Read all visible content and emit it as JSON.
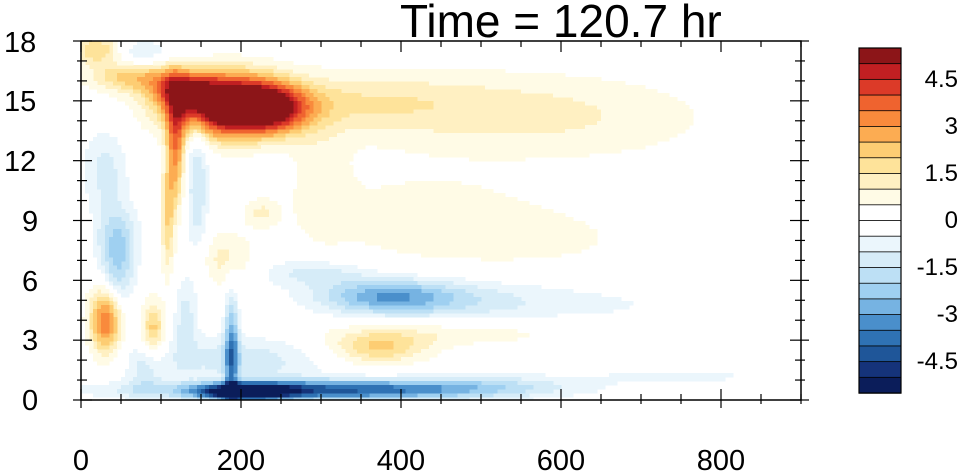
{
  "chart_data": {
    "type": "heatmap",
    "title": "Time = 120.7 hr",
    "xlim": [
      0,
      900
    ],
    "ylim": [
      0,
      18
    ],
    "x_ticks": [
      "0",
      "200",
      "400",
      "600",
      "800"
    ],
    "y_ticks": [
      "0",
      "3",
      "6",
      "9",
      "12",
      "15",
      "18"
    ],
    "colorbar": {
      "levels": [
        -5.5,
        -5,
        -4.5,
        -4,
        -3.5,
        -3,
        -2.5,
        -2,
        -1.5,
        -1,
        -0.5,
        0,
        0.5,
        1,
        1.5,
        2,
        2.5,
        3,
        3.5,
        4,
        4.5,
        5,
        5.5
      ],
      "labels": [
        "4.5",
        "3",
        "1.5",
        "0",
        "-1.5",
        "-3",
        "-4.5"
      ],
      "label_values": [
        4.5,
        3,
        1.5,
        0,
        -1.5,
        -3,
        -4.5
      ],
      "colors": [
        "#0b1d5a",
        "#15337a",
        "#1f5699",
        "#2f72b4",
        "#4a8fcb",
        "#76b3e2",
        "#9fd0f1",
        "#bde0f5",
        "#d6ecf8",
        "#ebf6fc",
        "#ffffff",
        "#ffffff",
        "#fffbe6",
        "#fff0c2",
        "#fee39a",
        "#fdcd73",
        "#fcac52",
        "#f98a3c",
        "#ef632f",
        "#dc3a28",
        "#c11f22",
        "#8c1518"
      ]
    },
    "features": [
      {
        "x": 180,
        "y": 14.8,
        "sx": 50,
        "sy": 1.1,
        "v": 6.0
      },
      {
        "x": 235,
        "y": 14.6,
        "sx": 35,
        "sy": 0.8,
        "v": 3.5
      },
      {
        "x": 130,
        "y": 15.5,
        "sx": 25,
        "sy": 0.6,
        "v": 3.0
      },
      {
        "x": 70,
        "y": 16.3,
        "sx": 40,
        "sy": 0.6,
        "v": 2.5
      },
      {
        "x": 20,
        "y": 17.6,
        "sx": 22,
        "sy": 0.5,
        "v": 2.0
      },
      {
        "x": 118,
        "y": 12.5,
        "sx": 8,
        "sy": 2.0,
        "v": 3.0
      },
      {
        "x": 108,
        "y": 9.0,
        "sx": 6,
        "sy": 2.0,
        "v": 1.8
      },
      {
        "x": 320,
        "y": 15.0,
        "sx": 120,
        "sy": 1.0,
        "v": 1.0
      },
      {
        "x": 480,
        "y": 14.5,
        "sx": 160,
        "sy": 1.5,
        "v": 0.8
      },
      {
        "x": 640,
        "y": 14.0,
        "sx": 130,
        "sy": 1.6,
        "v": 0.55
      },
      {
        "x": 300,
        "y": 11.0,
        "sx": 25,
        "sy": 2.0,
        "v": 0.7
      },
      {
        "x": 420,
        "y": 9.5,
        "sx": 110,
        "sy": 1.6,
        "v": 0.6
      },
      {
        "x": 560,
        "y": 8.0,
        "sx": 140,
        "sy": 1.4,
        "v": 0.55
      },
      {
        "x": 30,
        "y": 4.0,
        "sx": 14,
        "sy": 1.2,
        "v": 3.5
      },
      {
        "x": 90,
        "y": 3.6,
        "sx": 10,
        "sy": 1.0,
        "v": 2.2
      },
      {
        "x": 370,
        "y": 2.6,
        "sx": 45,
        "sy": 0.6,
        "v": 2.0
      },
      {
        "x": 470,
        "y": 3.4,
        "sx": 120,
        "sy": 0.5,
        "v": 0.9
      },
      {
        "x": 180,
        "y": 7.0,
        "sx": 25,
        "sy": 1.0,
        "v": 1.2
      },
      {
        "x": 160,
        "y": 0.5,
        "sx": 40,
        "sy": 0.5,
        "v": 1.0
      },
      {
        "x": 225,
        "y": 9.4,
        "sx": 15,
        "sy": 0.5,
        "v": 1.0
      },
      {
        "x": 300,
        "y": 0.5,
        "sx": 150,
        "sy": 0.35,
        "v": -4.0
      },
      {
        "x": 200,
        "y": 0.4,
        "sx": 40,
        "sy": 0.3,
        "v": -5.0
      },
      {
        "x": 500,
        "y": 0.8,
        "sx": 90,
        "sy": 0.4,
        "v": -1.0
      },
      {
        "x": 200,
        "y": 2.0,
        "sx": 80,
        "sy": 0.9,
        "v": -1.3
      },
      {
        "x": 380,
        "y": 5.2,
        "sx": 60,
        "sy": 0.6,
        "v": -2.5
      },
      {
        "x": 470,
        "y": 5.0,
        "sx": 90,
        "sy": 0.8,
        "v": -1.0
      },
      {
        "x": 650,
        "y": 4.8,
        "sx": 140,
        "sy": 0.9,
        "v": -0.5
      },
      {
        "x": 290,
        "y": 6.4,
        "sx": 50,
        "sy": 0.5,
        "v": -1.2
      },
      {
        "x": 45,
        "y": 8.0,
        "sx": 18,
        "sy": 1.2,
        "v": -2.0
      },
      {
        "x": 45,
        "y": 6.0,
        "sx": 14,
        "sy": 1.0,
        "v": -1.4
      },
      {
        "x": 30,
        "y": 11.5,
        "sx": 20,
        "sy": 1.5,
        "v": -1.2
      },
      {
        "x": 75,
        "y": 17.2,
        "sx": 25,
        "sy": 0.6,
        "v": -1.5
      },
      {
        "x": 145,
        "y": 11.0,
        "sx": 10,
        "sy": 3.0,
        "v": -1.5
      },
      {
        "x": 188,
        "y": 2.5,
        "sx": 6,
        "sy": 2.0,
        "v": -3.0
      },
      {
        "x": 130,
        "y": 4.0,
        "sx": 10,
        "sy": 1.5,
        "v": -1.2
      },
      {
        "x": 80,
        "y": 1.5,
        "sx": 15,
        "sy": 0.8,
        "v": -1.0
      },
      {
        "x": 750,
        "y": 1.2,
        "sx": 80,
        "sy": 0.3,
        "v": -0.7
      }
    ]
  }
}
